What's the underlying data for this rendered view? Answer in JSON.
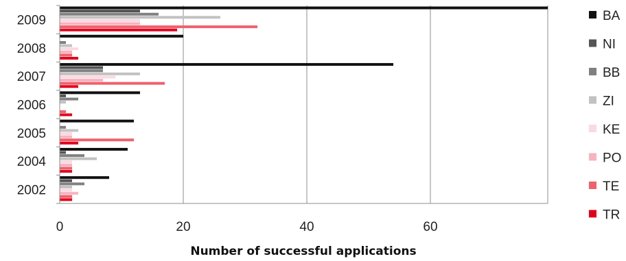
{
  "chart_data": {
    "type": "bar",
    "orientation": "horizontal",
    "categories": [
      "2009",
      "2008",
      "2007",
      "2006",
      "2005",
      "2004",
      "2002"
    ],
    "series": [
      {
        "name": "BA",
        "color": "#111111",
        "values": [
          80,
          20,
          54,
          13,
          12,
          11,
          8
        ]
      },
      {
        "name": "NI",
        "color": "#555555",
        "values": [
          13,
          0,
          7,
          1,
          0,
          1,
          2
        ]
      },
      {
        "name": "BB",
        "color": "#808080",
        "values": [
          16,
          1,
          7,
          3,
          1,
          4,
          4
        ]
      },
      {
        "name": "ZI",
        "color": "#c2c2c2",
        "values": [
          26,
          2,
          13,
          1,
          3,
          6,
          2
        ]
      },
      {
        "name": "KE",
        "color": "#fbd9e0",
        "values": [
          13,
          3,
          9,
          0,
          2,
          2,
          2
        ]
      },
      {
        "name": "PO",
        "color": "#f7b3bf",
        "values": [
          13,
          2,
          7,
          0,
          2,
          2,
          3
        ]
      },
      {
        "name": "TE",
        "color": "#f0606e",
        "values": [
          32,
          2,
          17,
          1,
          12,
          2,
          2
        ]
      },
      {
        "name": "TR",
        "color": "#e3001b",
        "values": [
          19,
          3,
          3,
          2,
          3,
          2,
          2
        ]
      }
    ],
    "xlabel": "Number of successful applications",
    "ylabel": "",
    "xlim": [
      0,
      79
    ],
    "xticks": [
      0,
      20,
      40,
      60
    ],
    "grid": "vertical",
    "legend": "right"
  }
}
